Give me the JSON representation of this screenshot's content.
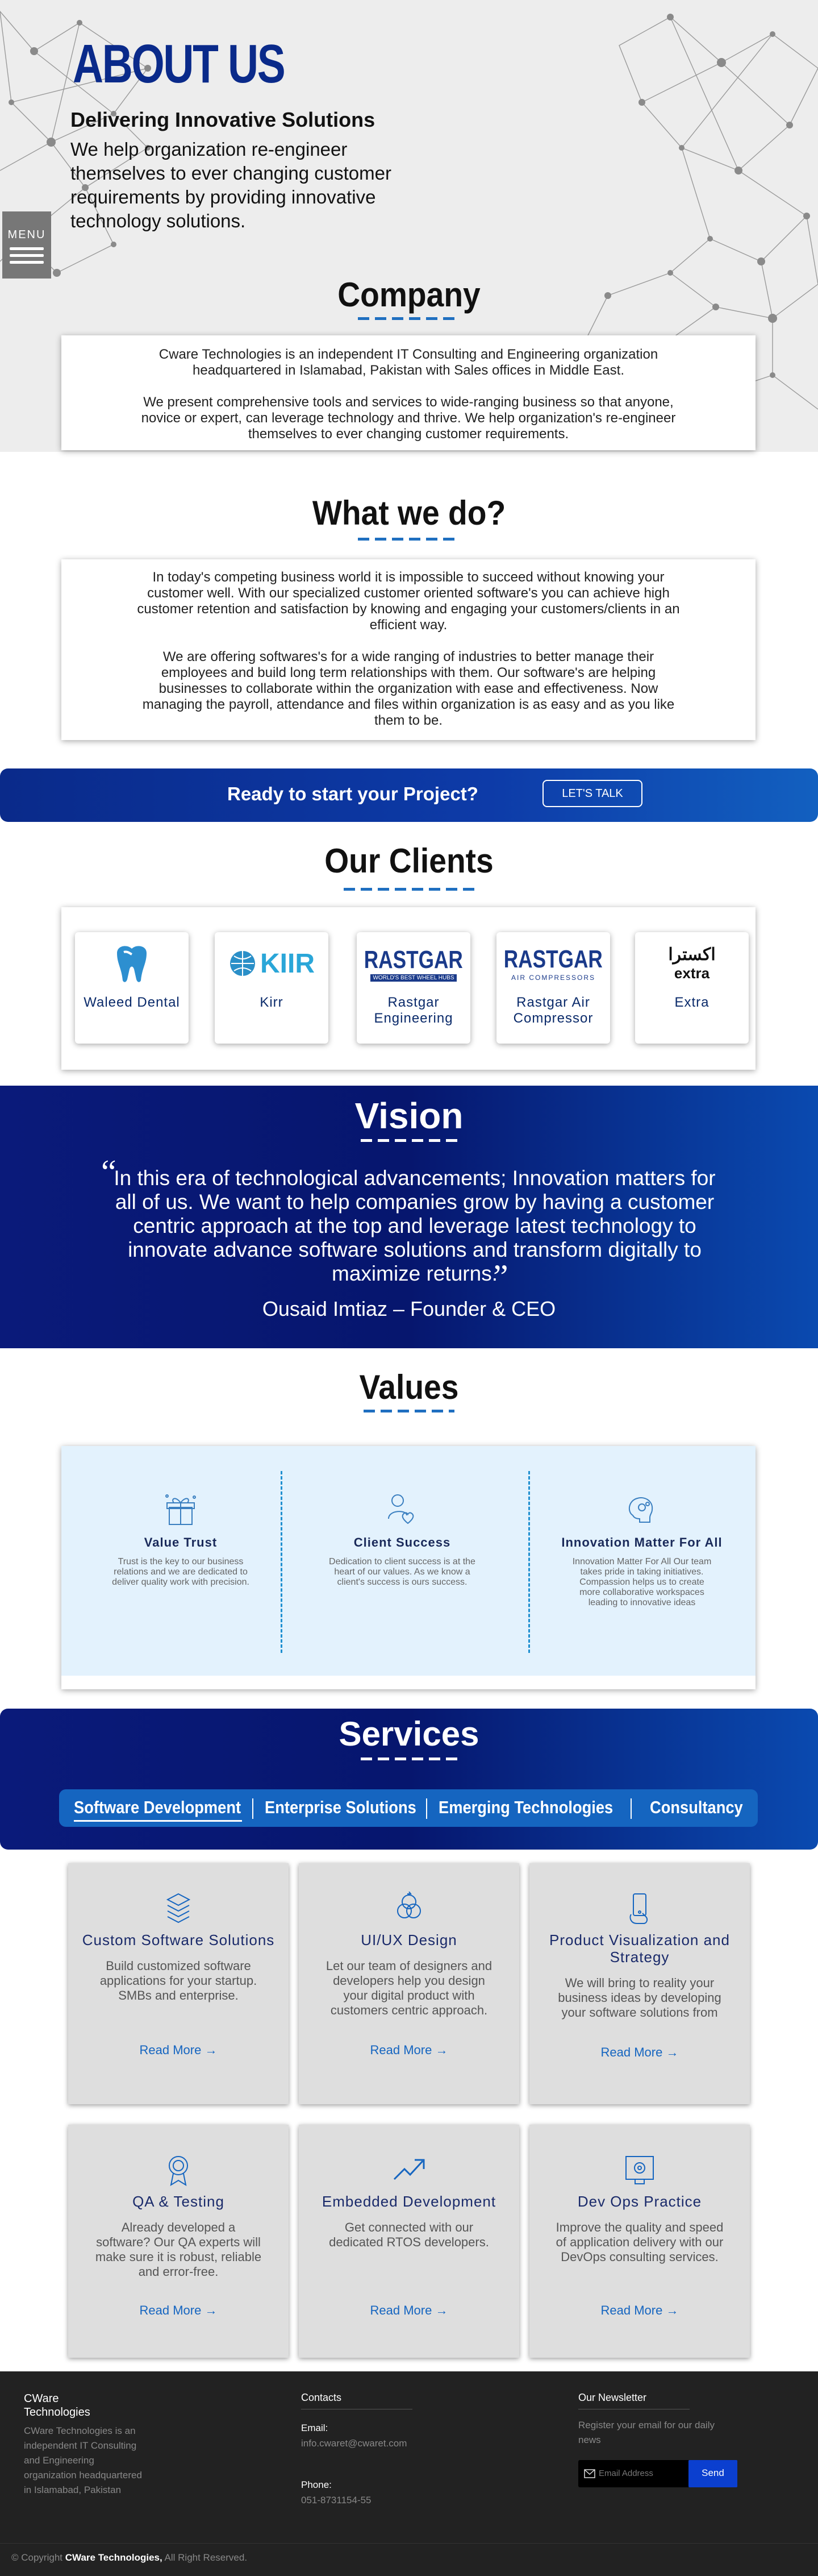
{
  "hero": {
    "title": "ABOUT US",
    "subtitle": "Delivering Innovative Solutions",
    "description": "We help organization re-engineer themselves to ever changing customer requirements by providing innovative technology solutions."
  },
  "menu": {
    "label": "MENU"
  },
  "company": {
    "title": "Company",
    "p1": "Cware Technologies is an independent IT Consulting and Engineering organization headquartered in Islamabad, Pakistan with Sales offices in Middle East.",
    "p2": "We present comprehensive tools and services to wide-ranging business so that anyone, novice or expert, can leverage technology and thrive. We help organization's re-engineer themselves to ever changing customer requirements."
  },
  "whatwedo": {
    "title": "What we do?",
    "p1": "In today's competing business world it is impossible to succeed without knowing your customer well. With our specialized customer oriented software's you can achieve high customer retention and satisfaction by knowing and engaging your customers/clients in an efficient way.",
    "p2": "We are offering softwares's for a wide ranging of industries to better manage their employees and build long term relationships with them. Our software's are helping businesses to collaborate within the organization with ease and effectiveness. Now managing the payroll, attendance and files within organization is as easy and as you like them to be."
  },
  "cta": {
    "text": "Ready to start your Project?",
    "button": "LET'S TALK"
  },
  "clients": {
    "title": "Our Clients",
    "items": [
      {
        "name": "Waleed Dental"
      },
      {
        "name": "Kirr",
        "logo_text": "KIIR"
      },
      {
        "name": "Rastgar Engineering",
        "logo_text": "RASTGAR",
        "logo_sub": "WORLD'S BEST WHEEL HUBS"
      },
      {
        "name": "Rastgar Air Compressor",
        "logo_text": "RASTGAR",
        "logo_sub": "AIR COMPRESSORS"
      },
      {
        "name": "Extra",
        "logo_text": "اكسترا",
        "logo_sub": "extra"
      }
    ]
  },
  "vision": {
    "title": "Vision",
    "quote": "In this era of technological advancements; Innovation matters for all of us. We want to help companies grow by having a customer centric approach at the top and leverage latest technology to innovate advance software solutions and transform digitally to maximize returns.",
    "author": "Ousaid Imtiaz – Founder & CEO"
  },
  "values": {
    "title": "Values",
    "items": [
      {
        "title": "Value Trust",
        "desc": "Trust is the key to our business relations and we are dedicated to deliver quality work with precision."
      },
      {
        "title": "Client Success",
        "desc": "Dedication to client success is at the heart of our values. As we know a client's success is ours success."
      },
      {
        "title": "Innovation Matter For All",
        "desc": "Innovation Matter For All Our team takes pride in taking initiatives. Compassion helps us to create more collaborative workspaces leading to innovative ideas"
      }
    ]
  },
  "services": {
    "title": "Services",
    "tabs": [
      "Software Development",
      "Enterprise Solutions",
      "Emerging Technologies",
      "Consultancy"
    ],
    "read_more": "Read More",
    "cards": [
      {
        "title": "Custom Software Solutions",
        "desc": "Build customized software applications for your startup. SMBs and enterprise.",
        "icon": "layers-icon"
      },
      {
        "title": "UI/UX Design",
        "desc": "Let our team of designers and developers help you design your digital product with customers centric approach.",
        "icon": "design-icon"
      },
      {
        "title": "Product Visualization and Strategy",
        "desc": "We will bring to reality your business ideas by developing your software solutions from",
        "icon": "mobile-touch-icon"
      },
      {
        "title": "QA & Testing",
        "desc": "Already developed a software? Our QA experts will make sure it is robust, reliable and error-free.",
        "icon": "badge-icon"
      },
      {
        "title": "Embedded Development",
        "desc": "Get connected with our dedicated RTOS developers.",
        "icon": "trend-up-icon"
      },
      {
        "title": "Dev Ops Practice",
        "desc": "Improve the quality and speed of application delivery with our DevOps consulting services.",
        "icon": "monitor-gear-icon"
      }
    ]
  },
  "footer": {
    "brand": "CWare Technologies",
    "about": "CWare Technologies is an independent IT Consulting and Engineering organization headquartered in Islamabad, Pakistan",
    "contacts_title": "Contacts",
    "email_label": "Email:",
    "email": "info.cwaret@cwaret.com",
    "phone_label": "Phone:",
    "phone": "051-8731154-55",
    "newsletter_title": "Our Newsletter",
    "newsletter_desc": "Register your email for our daily news",
    "email_placeholder": "Email Address",
    "send": "Send",
    "copyright_prefix": "© Copyright",
    "copyright_brand": "CWare Technologies,",
    "copyright_suffix": "All Right Reserved."
  },
  "colors": {
    "brand_blue": "#0a2a8a",
    "accent": "#1565c0",
    "footer_bg": "#222222"
  }
}
